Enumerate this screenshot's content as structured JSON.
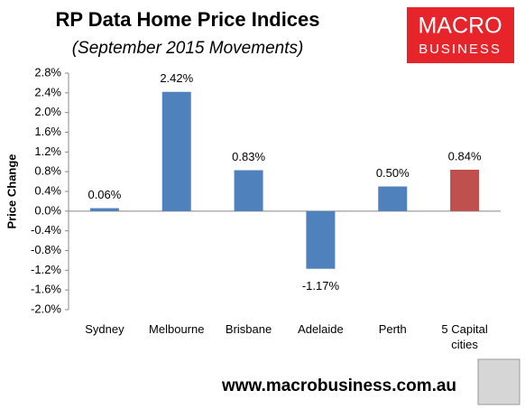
{
  "chart_data": {
    "type": "bar",
    "title": "RP Data Home Price Indices",
    "subtitle": "(September 2015 Movements)",
    "y_label": "Price Change",
    "categories": [
      "Sydney",
      "Melbourne",
      "Brisbane",
      "Adelaide",
      "Perth",
      "5 Capital cities"
    ],
    "values": [
      0.06,
      2.42,
      0.83,
      -1.17,
      0.5,
      0.84
    ],
    "value_labels": [
      "0.06%",
      "2.42%",
      "0.83%",
      "-1.17%",
      "0.50%",
      "0.84%"
    ],
    "colors": [
      "#4f81bd",
      "#4f81bd",
      "#4f81bd",
      "#4f81bd",
      "#4f81bd",
      "#c0504d"
    ],
    "ylim": [
      -2.0,
      2.8
    ],
    "yticks": [
      {
        "value": -2.0,
        "label": "-2.0%"
      },
      {
        "value": -1.6,
        "label": "-1.6%"
      },
      {
        "value": -1.2,
        "label": "-1.2%"
      },
      {
        "value": -0.8,
        "label": "-0.8%"
      },
      {
        "value": -0.4,
        "label": "-0.4%"
      },
      {
        "value": 0.0,
        "label": "0.0%"
      },
      {
        "value": 0.4,
        "label": "0.4%"
      },
      {
        "value": 0.8,
        "label": "0.8%"
      },
      {
        "value": 1.2,
        "label": "1.2%"
      },
      {
        "value": 1.6,
        "label": "1.6%"
      },
      {
        "value": 2.0,
        "label": "2.0%"
      },
      {
        "value": 2.4,
        "label": "2.4%"
      },
      {
        "value": 2.8,
        "label": "2.8%"
      }
    ],
    "grid": false
  },
  "logo": [
    "MACRO",
    "BUSINESS"
  ],
  "footer": "www.macrobusiness.com.au"
}
